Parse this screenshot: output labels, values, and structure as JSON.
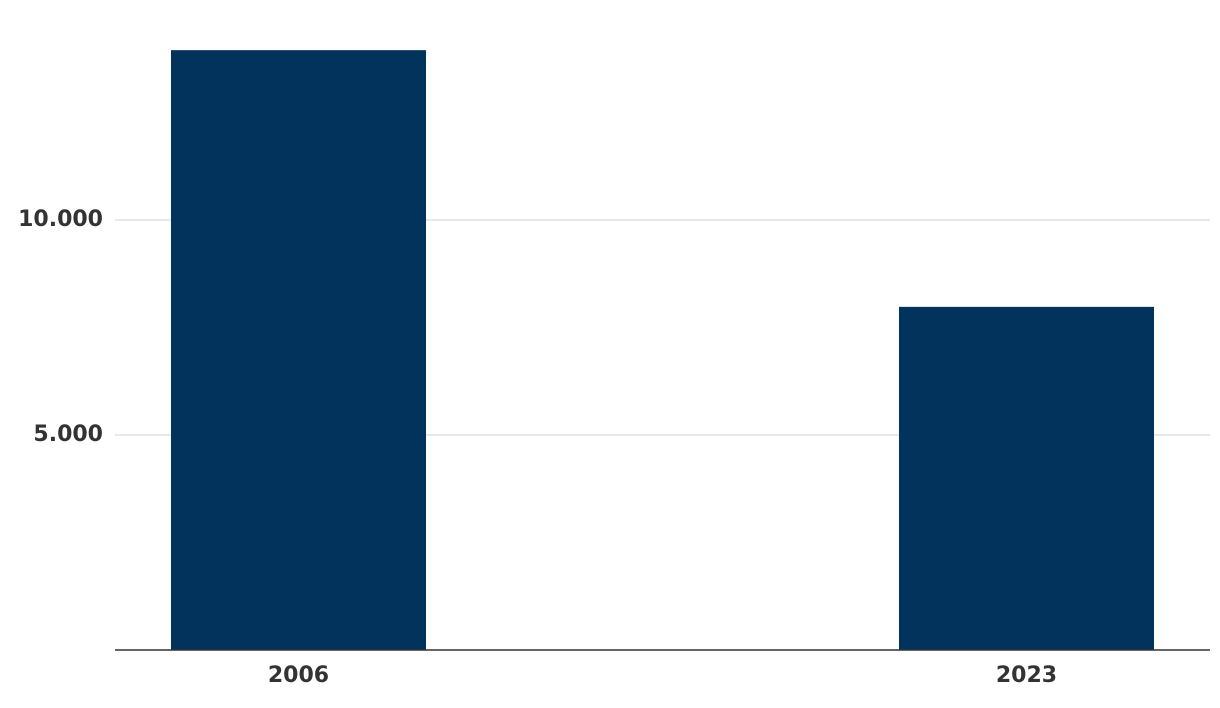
{
  "chart_data": {
    "type": "bar",
    "categories": [
      "2006",
      "2023"
    ],
    "values": [
      13950,
      7980
    ],
    "color": "#02335c",
    "ylim": [
      0,
      14000
    ],
    "yticks": [
      {
        "value": 5000,
        "label": "5.000"
      },
      {
        "value": 10000,
        "label": "10.000"
      }
    ],
    "grid": true
  }
}
